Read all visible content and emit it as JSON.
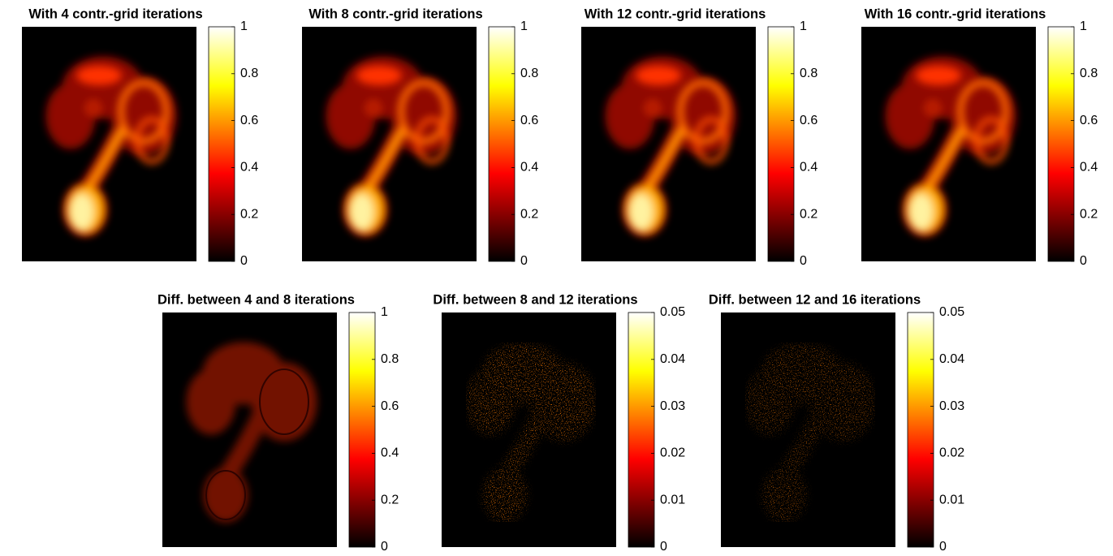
{
  "chart_data": [
    {
      "type": "image",
      "title": "With 4 contr.-grid iterations",
      "clim": [
        0,
        1
      ],
      "cticks": [
        0,
        0.2,
        0.4,
        0.6,
        0.8,
        1
      ]
    },
    {
      "type": "image",
      "title": "With 8 contr.-grid iterations",
      "clim": [
        0,
        1
      ],
      "cticks": [
        0,
        0.2,
        0.4,
        0.6,
        0.8,
        1
      ]
    },
    {
      "type": "image",
      "title": "With 12 contr.-grid iterations",
      "clim": [
        0,
        1
      ],
      "cticks": [
        0,
        0.2,
        0.4,
        0.6,
        0.8,
        1
      ]
    },
    {
      "type": "image",
      "title": "With 16 contr.-grid iterations",
      "clim": [
        0,
        1
      ],
      "cticks": [
        0,
        0.2,
        0.4,
        0.6,
        0.8,
        1
      ]
    },
    {
      "type": "image",
      "title": "Diff. between 4 and 8 iterations",
      "clim": [
        0,
        1
      ],
      "cticks": [
        0,
        0.2,
        0.4,
        0.6,
        0.8,
        1
      ]
    },
    {
      "type": "image",
      "title": "Diff. between 8 and 12 iterations",
      "clim": [
        0,
        0.05
      ],
      "cticks": [
        0,
        0.01,
        0.02,
        0.03,
        0.04,
        0.05
      ]
    },
    {
      "type": "image",
      "title": "Diff. between 12 and 16 iterations",
      "clim": [
        0,
        0.05
      ],
      "cticks": [
        0,
        0.01,
        0.02,
        0.03,
        0.04,
        0.05
      ]
    }
  ]
}
